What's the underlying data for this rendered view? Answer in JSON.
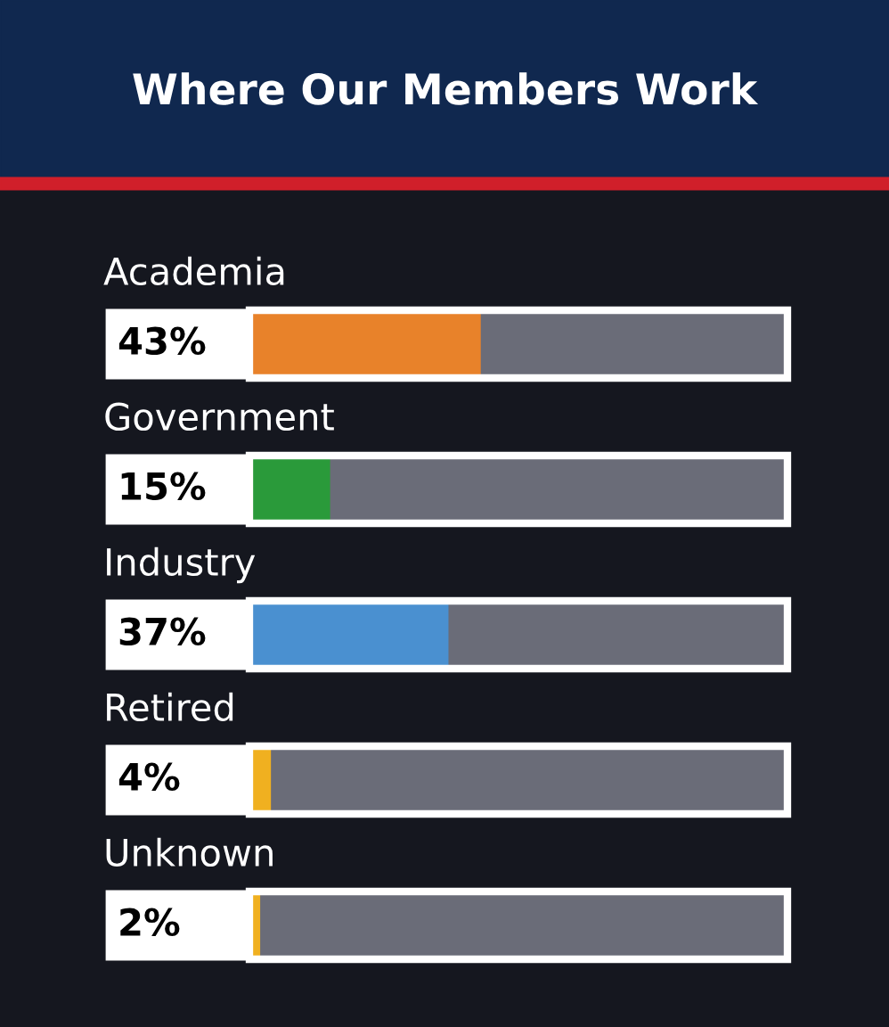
{
  "chart_data": {
    "type": "bar",
    "orientation": "horizontal",
    "title": "Where Our Members Work",
    "categories": [
      "Academia",
      "Government",
      "Industry",
      "Retired",
      "Unknown"
    ],
    "values": [
      43,
      15,
      37,
      4,
      2
    ],
    "value_labels": [
      "43%",
      "15%",
      "37%",
      "4%",
      "2%"
    ],
    "colors": [
      "#e8822a",
      "#2a9a3a",
      "#4a90d0",
      "#f0b020",
      "#f0b020"
    ],
    "xlim": [
      0,
      100
    ]
  }
}
